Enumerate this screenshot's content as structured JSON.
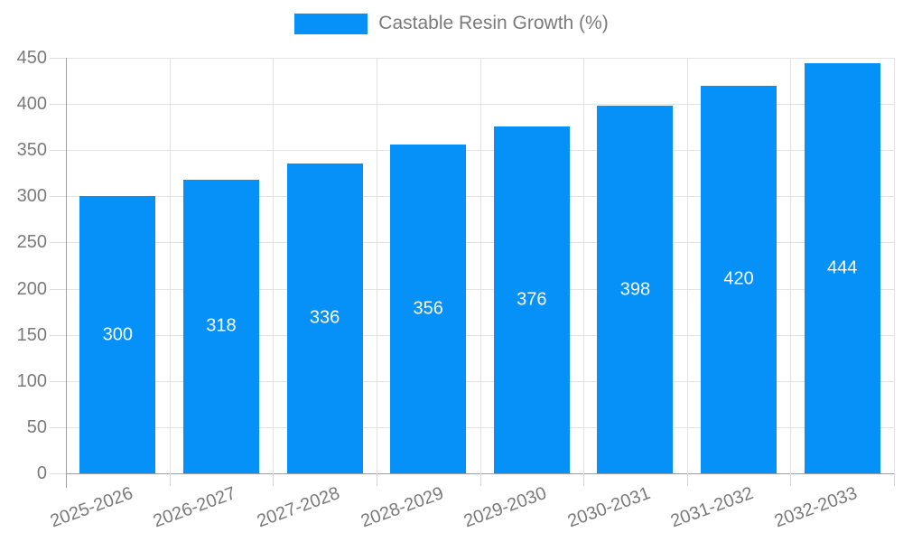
{
  "legend": {
    "label": "Castable Resin Growth (%)"
  },
  "colors": {
    "bar": "#0591f8",
    "axis_line": "#9e9e9e",
    "grid_line": "#e3e3e3",
    "tick": "#d6d6d6",
    "label_text": "#7a7a7a",
    "bar_label_text": "#ffffff",
    "background": "#ffffff"
  },
  "chart_data": {
    "type": "bar",
    "title": "Castable Resin Growth (%)",
    "series_name": "Castable Resin Growth (%)",
    "categories": [
      "2025-2026",
      "2026-2027",
      "2027-2028",
      "2028-2029",
      "2029-2030",
      "2030-2031",
      "2031-2032",
      "2032-2033"
    ],
    "values": [
      300,
      318,
      336,
      356,
      376,
      398,
      420,
      444
    ],
    "xlabel": "",
    "ylabel": "",
    "ylim": [
      0,
      450
    ],
    "y_ticks": [
      0,
      50,
      100,
      150,
      200,
      250,
      300,
      350,
      400,
      450
    ],
    "grid": true,
    "legend_position": "top-center",
    "bar_label_position": "inside-middle",
    "x_label_rotation_deg": -20
  }
}
